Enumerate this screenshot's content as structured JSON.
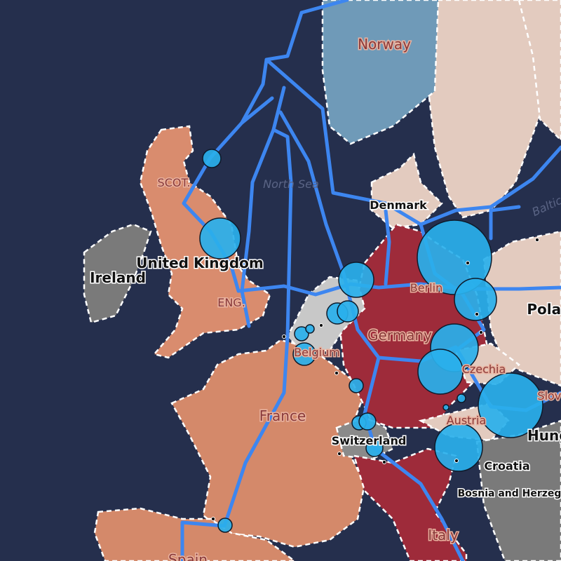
{
  "labels": [
    "Norway",
    "North Sea",
    "Denmark",
    "Baltic Sea",
    "SCOT.",
    "United Kingdom",
    "Ireland",
    "ENG.",
    "Germany",
    "Berlin",
    "Poland",
    "Czechia",
    "Slovakia",
    "Austria",
    "Hungary",
    "Croatia",
    "Bosnia and Herzegovina",
    "France",
    "Belgium",
    "Switzerland",
    "Italy",
    "Spain"
  ]
}
